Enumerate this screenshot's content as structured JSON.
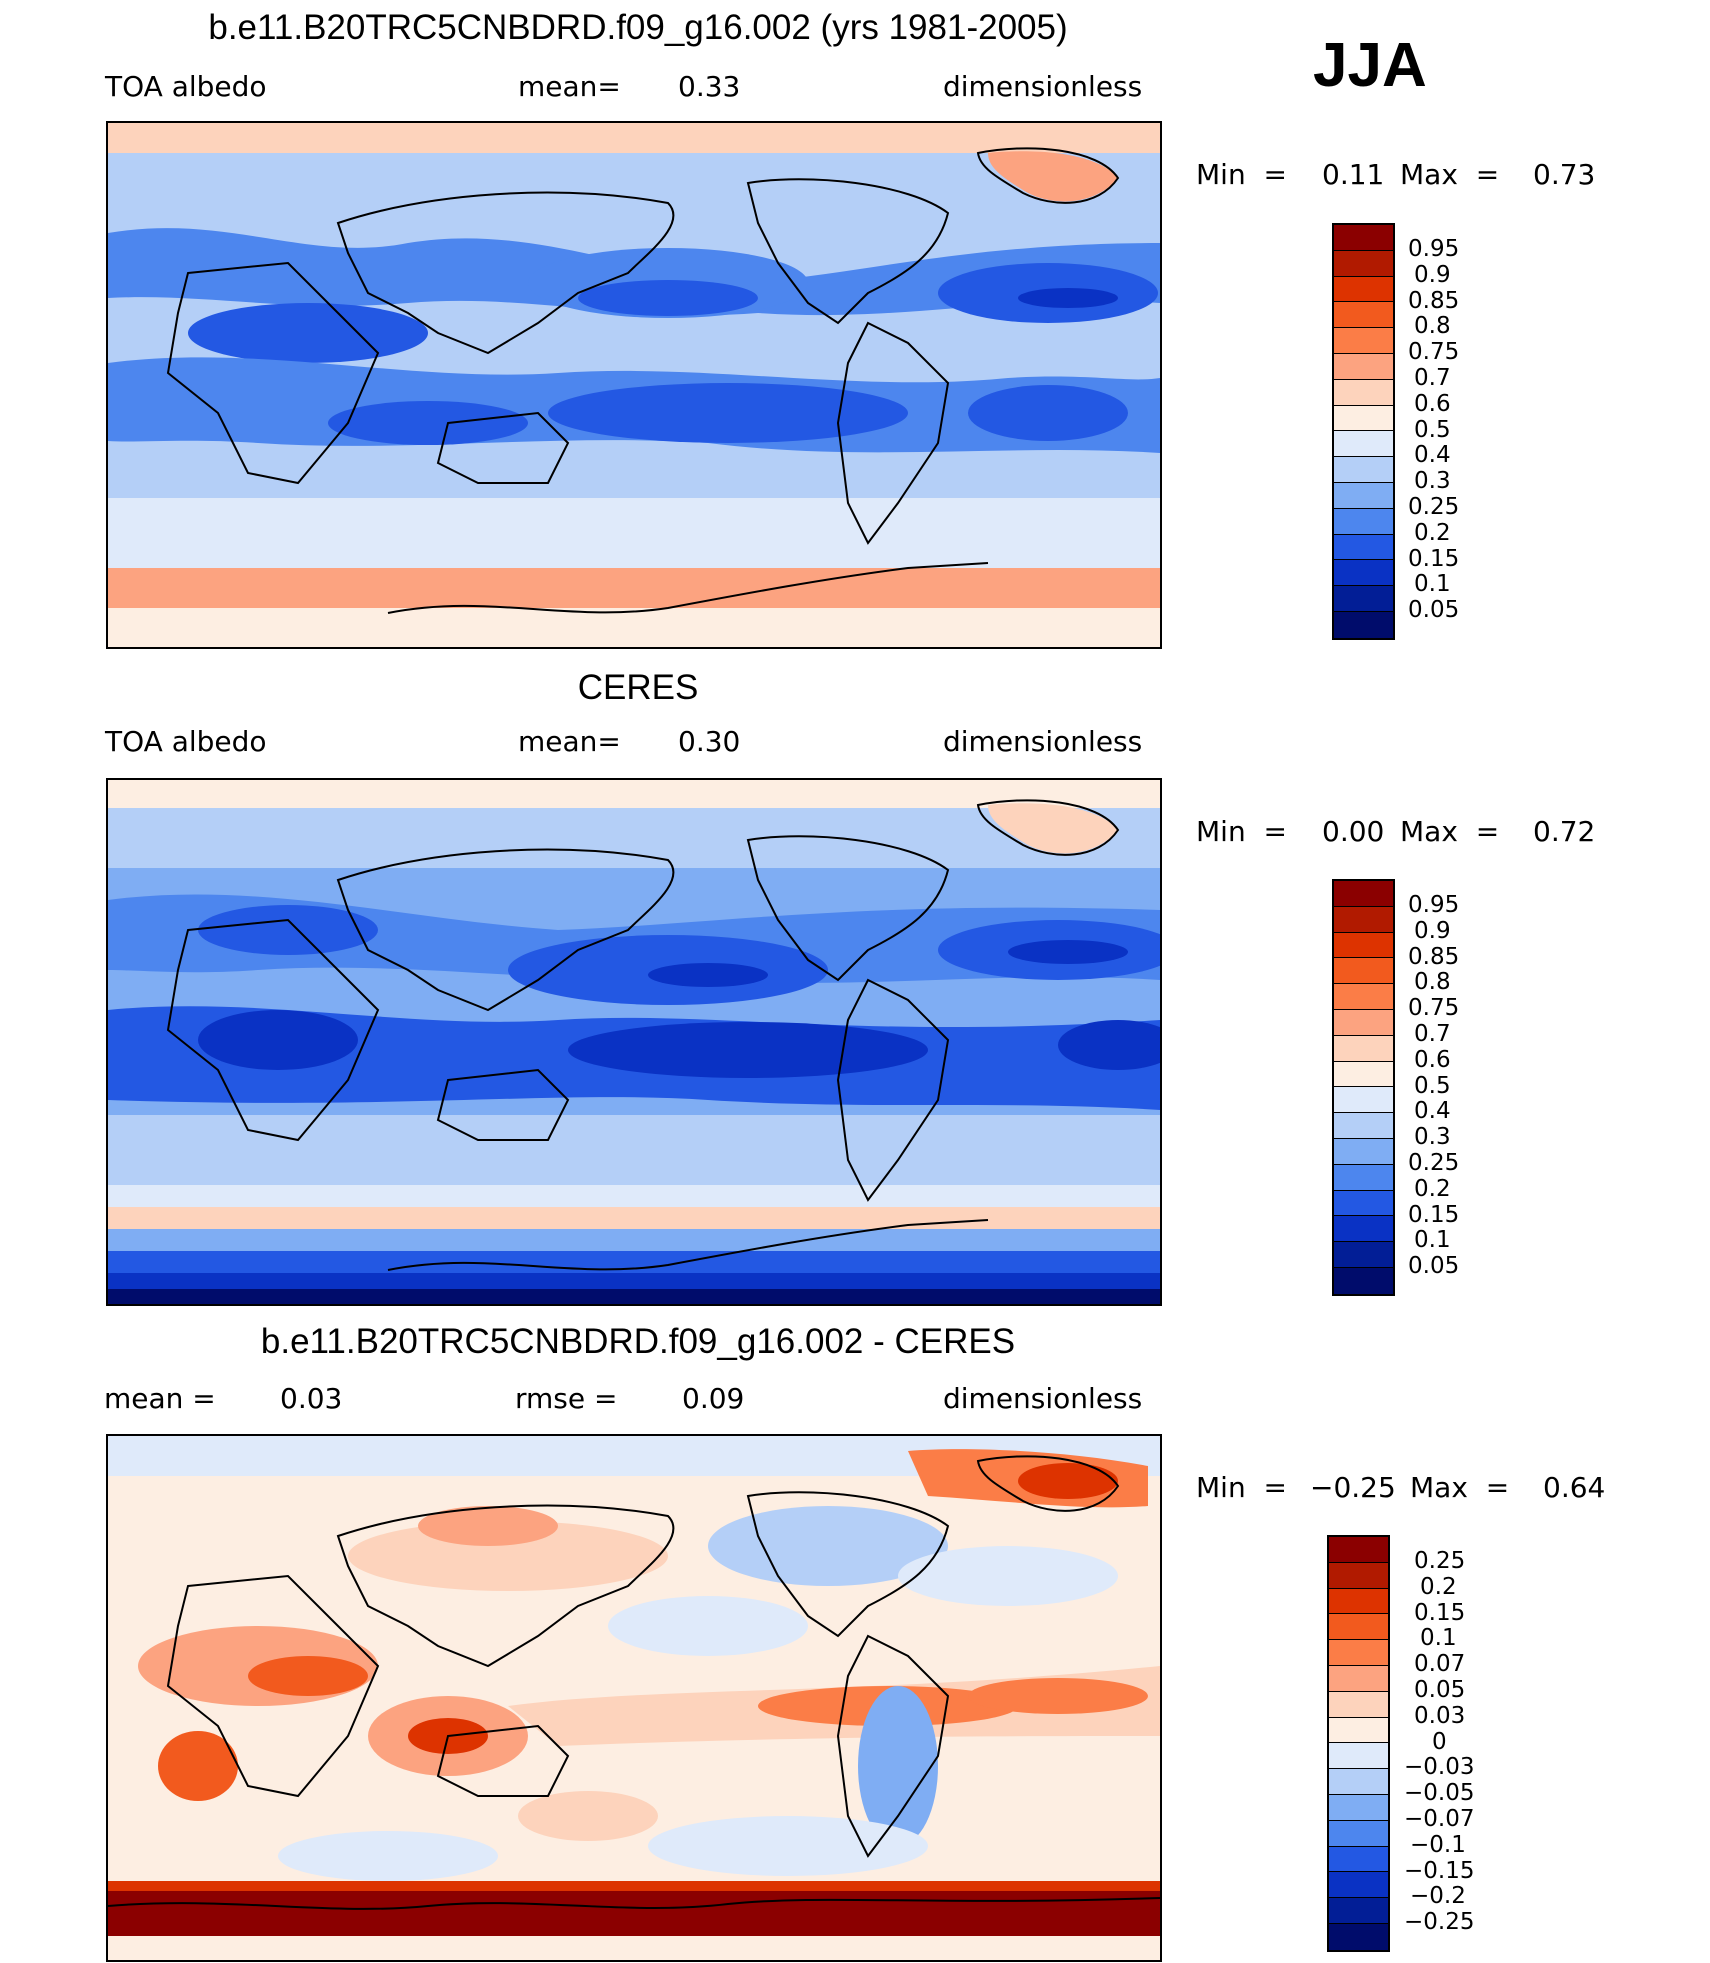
{
  "season_label": "JJA",
  "panels": [
    {
      "title": "b.e11.B20TRC5CNBDRD.f09_g16.002 (yrs 1981-2005)",
      "left_label": "TOA  albedo",
      "center_key": "mean=",
      "center_value": "0.33",
      "right_label": "dimensionless",
      "min_label": "Min  =",
      "min_value": "0.11",
      "max_label": "Max  =",
      "max_value": "0.73",
      "colorbar_labels": [
        "0.95",
        "0.9",
        "0.85",
        "0.8",
        "0.75",
        "0.7",
        "0.6",
        "0.5",
        "0.4",
        "0.3",
        "0.25",
        "0.2",
        "0.15",
        "0.1",
        "0.05"
      ]
    },
    {
      "title": "CERES",
      "left_label": "TOA  albedo",
      "center_key": "mean=",
      "center_value": "0.30",
      "right_label": "dimensionless",
      "min_label": "Min  =",
      "min_value": "0.00",
      "max_label": "Max  =",
      "max_value": "0.72",
      "colorbar_labels": [
        "0.95",
        "0.9",
        "0.85",
        "0.8",
        "0.75",
        "0.7",
        "0.6",
        "0.5",
        "0.4",
        "0.3",
        "0.25",
        "0.2",
        "0.15",
        "0.1",
        "0.05"
      ]
    },
    {
      "title": "b.e11.B20TRC5CNBDRD.f09_g16.002 - CERES",
      "left_label": "mean  =",
      "left_value": "0.03",
      "center_key": "rmse  =",
      "center_value": "0.09",
      "right_label": "dimensionless",
      "min_label": "Min  =",
      "min_value": "−0.25",
      "max_label": "Max  =",
      "max_value": "0.64",
      "colorbar_labels": [
        "0.25",
        "0.2",
        "0.15",
        "0.1",
        "0.07",
        "0.05",
        "0.03",
        "0",
        "−0.03",
        "−0.05",
        "−0.07",
        "−0.1",
        "−0.15",
        "−0.2",
        "−0.25"
      ]
    }
  ],
  "colors": {
    "colorbar_top_to_bottom": [
      "#8b0000",
      "#b11a00",
      "#dd3300",
      "#f25a1e",
      "#fb7d47",
      "#fca380",
      "#fdd3bc",
      "#fdeee2",
      "#dfeafa",
      "#b4cff7",
      "#7fadf3",
      "#4d86ee",
      "#2358e3",
      "#0a32c4",
      "#021e96",
      "#000c6b"
    ],
    "outline": "#000000"
  }
}
